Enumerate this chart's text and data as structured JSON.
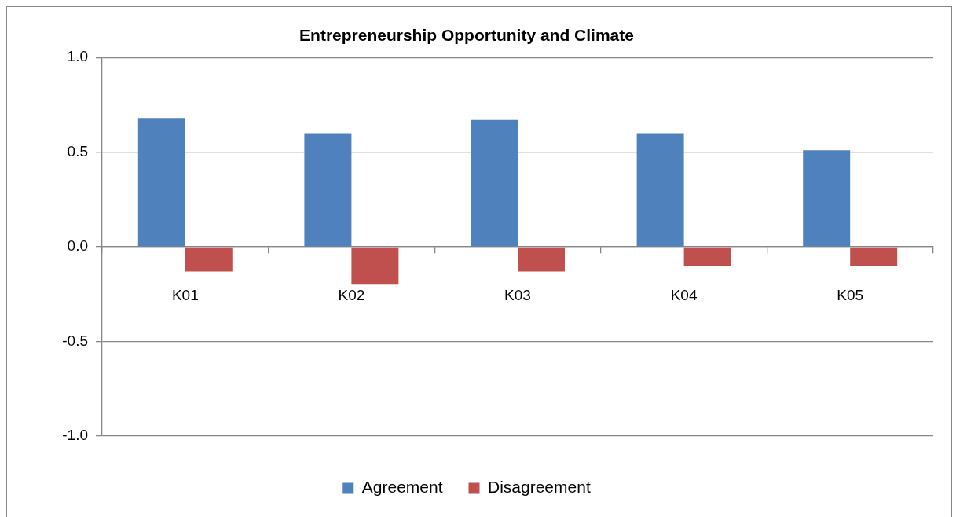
{
  "chart_data": {
    "type": "bar",
    "title": "Entrepreneurship Opportunity and Climate",
    "categories": [
      "K01",
      "K02",
      "K03",
      "K04",
      "K05"
    ],
    "series": [
      {
        "name": "Agreement",
        "color": "#4f81bd",
        "values": [
          0.68,
          0.6,
          0.67,
          0.6,
          0.51
        ]
      },
      {
        "name": "Disagreement",
        "color": "#c0504d",
        "values": [
          -0.13,
          -0.2,
          -0.13,
          -0.1,
          -0.1
        ]
      }
    ],
    "ylim": [
      -1,
      1
    ],
    "yticks": [
      {
        "value": -1,
        "label": "-1.0"
      },
      {
        "value": -0.5,
        "label": "-0.5"
      },
      {
        "value": 0,
        "label": "0.0"
      },
      {
        "value": 0.5,
        "label": "0.5"
      },
      {
        "value": 1,
        "label": "1.0"
      }
    ],
    "grid": "y",
    "legend": "bottom"
  }
}
